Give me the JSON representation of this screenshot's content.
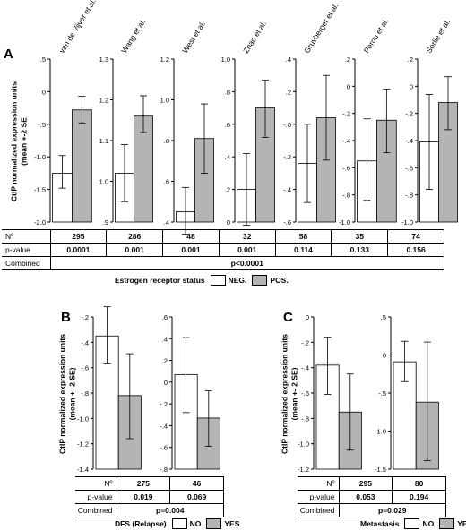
{
  "panels": {
    "A": {
      "letter": "A"
    },
    "B": {
      "letter": "B"
    },
    "C": {
      "letter": "C"
    }
  },
  "colors": {
    "neg": "#ffffff",
    "pos": "#b4b4b4",
    "stroke": "#000000"
  },
  "ylabel": "CtIP normalized expression units\n(mean +-2 SE",
  "ylabel_bc": "CtIP normalized expression units\n(mean +- 2 SE)",
  "chart_data": [
    {
      "panel": "A",
      "type": "bar",
      "ylabel": "CtIP normalized expression units (mean +-2 SE",
      "legend_title": "Estrogen receptor status",
      "legend": [
        {
          "name": "NEG.",
          "color": "#ffffff"
        },
        {
          "name": "POS.",
          "color": "#b4b4b4"
        }
      ],
      "subplots": [
        {
          "title": "van de Vijver et al.",
          "yticks": [
            ".5",
            "0",
            "-.5",
            "-1.0",
            "-1.5",
            "-2.0"
          ],
          "ylim": [
            -2.0,
            0.5
          ],
          "neg": {
            "mean": -1.25,
            "lo": -1.48,
            "hi": -0.98
          },
          "pos": {
            "mean": -0.28,
            "lo": -0.48,
            "hi": -0.07
          }
        },
        {
          "title": "Wang et al.",
          "yticks": [
            "1.3",
            "1.2",
            "1.1",
            "1.0",
            ".9"
          ],
          "ylim": [
            0.9,
            1.3
          ],
          "neg": {
            "mean": 1.02,
            "lo": 0.95,
            "hi": 1.09
          },
          "pos": {
            "mean": 1.16,
            "lo": 1.12,
            "hi": 1.21
          }
        },
        {
          "title": "West et al.",
          "yticks": [
            "1.2",
            "1.0",
            ".8",
            ".6",
            ".4"
          ],
          "ylim": [
            0.4,
            1.2
          ],
          "neg": {
            "mean": 0.45,
            "lo": 0.34,
            "hi": 0.57
          },
          "pos": {
            "mean": 0.81,
            "lo": 0.64,
            "hi": 0.98
          }
        },
        {
          "title": "Zhao et al.",
          "yticks": [
            "1.0",
            ".8",
            ".6",
            ".4",
            ".2",
            "0"
          ],
          "ylim": [
            0.0,
            1.0
          ],
          "neg": {
            "mean": 0.2,
            "lo": -0.02,
            "hi": 0.42
          },
          "pos": {
            "mean": 0.7,
            "lo": 0.52,
            "hi": 0.87
          }
        },
        {
          "title": "Gruvberger et al.",
          "yticks": [
            ".4",
            ".2",
            "-.0",
            "-.2",
            "-.4",
            "-.6"
          ],
          "ylim": [
            -0.6,
            0.4
          ],
          "neg": {
            "mean": -0.24,
            "lo": -0.48,
            "hi": 0.0
          },
          "pos": {
            "mean": 0.04,
            "lo": -0.22,
            "hi": 0.3
          }
        },
        {
          "title": "Perou et al.",
          "yticks": [
            ".2",
            "0",
            "-.2",
            "-.4",
            "-.6",
            "-.8",
            "-1.0"
          ],
          "ylim": [
            -1.0,
            0.2
          ],
          "neg": {
            "mean": -0.55,
            "lo": -0.84,
            "hi": -0.24
          },
          "pos": {
            "mean": -0.25,
            "lo": -0.49,
            "hi": -0.02
          }
        },
        {
          "title": "Sorlie et al.",
          "yticks": [
            ".2",
            "0",
            "-.2",
            "-.4",
            "-.6",
            "-.8",
            "-1.0"
          ],
          "ylim": [
            -1.0,
            0.2
          ],
          "neg": {
            "mean": -0.41,
            "lo": -0.76,
            "hi": -0.06
          },
          "pos": {
            "mean": -0.12,
            "lo": -0.32,
            "hi": 0.07
          }
        }
      ],
      "n_values": [
        "295",
        "286",
        "48",
        "32",
        "58",
        "35",
        "74"
      ],
      "p_values": [
        "0.0001",
        "0.001",
        "0.001",
        "0.001",
        "0.114",
        "0.133",
        "0.156"
      ],
      "combined": "p<0.0001"
    },
    {
      "panel": "B",
      "type": "bar",
      "ylabel": "CtIP normalized expression units (mean +- 2 SE)",
      "legend_title": "DFS (Relapse)",
      "legend": [
        {
          "name": "NO",
          "color": "#ffffff"
        },
        {
          "name": "YES",
          "color": "#b4b4b4"
        }
      ],
      "subplots": [
        {
          "title": "",
          "yticks": [
            "-.2",
            "-.4",
            "-.6",
            "-.8",
            "-1.0",
            "-1.2",
            "-1.4"
          ],
          "ylim": [
            -1.4,
            -0.2
          ],
          "neg": {
            "mean": -0.35,
            "lo": -0.57,
            "hi": -0.12
          },
          "pos": {
            "mean": -0.82,
            "lo": -1.16,
            "hi": -0.49
          }
        },
        {
          "title": "",
          "yticks": [
            ".6",
            ".4",
            ".2",
            "0",
            "-.2",
            "-.4",
            "-.6",
            "-.8"
          ],
          "ylim": [
            -0.8,
            0.6
          ],
          "neg": {
            "mean": 0.07,
            "lo": -0.28,
            "hi": 0.41
          },
          "pos": {
            "mean": -0.33,
            "lo": -0.59,
            "hi": -0.08
          }
        }
      ],
      "n_values": [
        "275",
        "46"
      ],
      "p_values": [
        "0.019",
        "0.069"
      ],
      "combined": "p=0.004"
    },
    {
      "panel": "C",
      "type": "bar",
      "ylabel": "CtIP normalized expression units (mean +- 2 SE)",
      "legend_title": "Metastasis",
      "legend": [
        {
          "name": "NO",
          "color": "#ffffff"
        },
        {
          "name": "YES",
          "color": "#b4b4b4"
        }
      ],
      "subplots": [
        {
          "title": "",
          "yticks": [
            "0",
            "-.2",
            "-.4",
            "-.6",
            "-.8",
            "-1.0",
            "-1.2"
          ],
          "ylim": [
            -1.2,
            0.0
          ],
          "neg": {
            "mean": -0.38,
            "lo": -0.61,
            "hi": -0.16
          },
          "pos": {
            "mean": -0.75,
            "lo": -1.05,
            "hi": -0.45
          }
        },
        {
          "title": "",
          "yticks": [
            ".5",
            "0",
            "-.5",
            "-1.0",
            "-1.5"
          ],
          "ylim": [
            -1.5,
            0.5
          ],
          "neg": {
            "mean": -0.09,
            "lo": -0.35,
            "hi": 0.18
          },
          "pos": {
            "mean": -0.62,
            "lo": -1.39,
            "hi": 0.17
          }
        }
      ],
      "n_values": [
        "295",
        "80"
      ],
      "p_values": [
        "0.053",
        "0.194"
      ],
      "combined": "p=0.029"
    }
  ],
  "table_labels": {
    "n": "Nº",
    "p": "p-value",
    "combined": "Combined"
  }
}
